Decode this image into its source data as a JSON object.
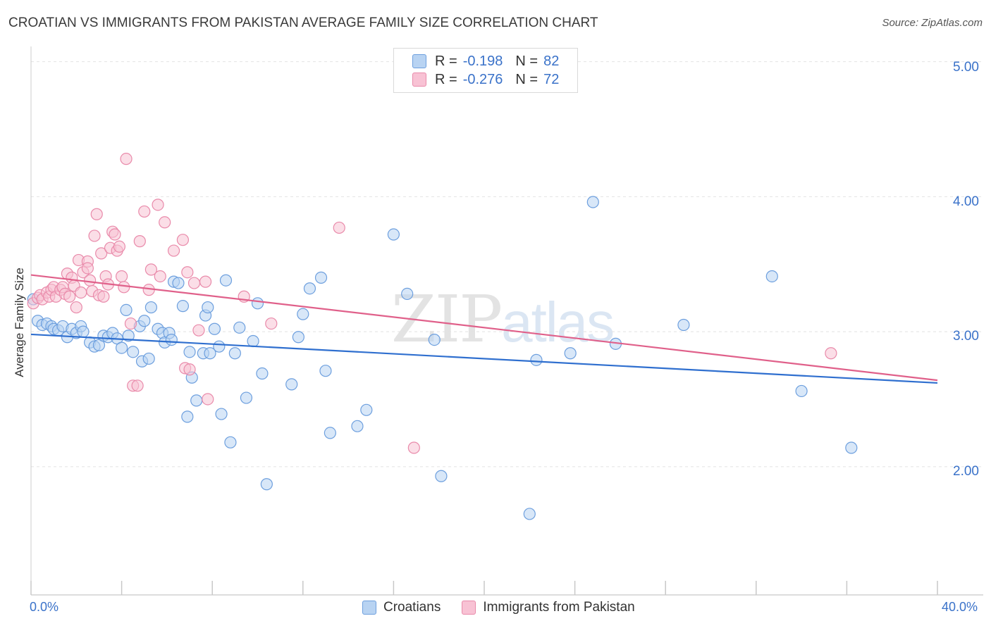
{
  "title": "CROATIAN VS IMMIGRANTS FROM PAKISTAN AVERAGE FAMILY SIZE CORRELATION CHART",
  "source": "Source: ZipAtlas.com",
  "watermark": {
    "bold": "ZIP",
    "thin": "atlas"
  },
  "legend": {
    "rows": [
      {
        "r_label": "R =",
        "r_value": "-0.198",
        "n_label": "N =",
        "n_value": "82",
        "fill": "#b8d3f2",
        "stroke": "#6d9fde"
      },
      {
        "r_label": "R =",
        "r_value": "-0.276",
        "n_label": "N =",
        "n_value": "72",
        "fill": "#f8c2d4",
        "stroke": "#e98aaa"
      }
    ]
  },
  "bottom_legend": [
    {
      "label": "Croatians",
      "fill": "#b8d3f2",
      "stroke": "#6d9fde"
    },
    {
      "label": "Immigrants from Pakistan",
      "fill": "#f8c2d4",
      "stroke": "#e98aaa"
    }
  ],
  "chart_data": {
    "type": "scatter",
    "title": "CROATIAN VS IMMIGRANTS FROM PAKISTAN AVERAGE FAMILY SIZE CORRELATION CHART",
    "xlabel": "",
    "ylabel": "Average Family Size",
    "x_tick_labels": [
      "0.0%",
      "40.0%"
    ],
    "y_tick_labels": [
      "2.00",
      "3.00",
      "4.00",
      "5.00"
    ],
    "xlim": [
      0,
      40
    ],
    "ylim": [
      1.05,
      5.05
    ],
    "grid": true,
    "legend_placement": "top-center",
    "series": [
      {
        "name": "Croatians",
        "color": "#6d9fde",
        "fill": "#b8d3f2",
        "trend": {
          "x0": 0,
          "y0": 2.98,
          "x1": 40,
          "y1": 2.62,
          "color": "#2f6fcf"
        },
        "points": [
          [
            0.1,
            3.24
          ],
          [
            0.3,
            3.08
          ],
          [
            0.5,
            3.05
          ],
          [
            0.7,
            3.06
          ],
          [
            0.9,
            3.04
          ],
          [
            1.0,
            3.02
          ],
          [
            1.2,
            3.01
          ],
          [
            1.4,
            3.04
          ],
          [
            1.6,
            2.96
          ],
          [
            1.8,
            3.02
          ],
          [
            2.0,
            2.99
          ],
          [
            2.2,
            3.04
          ],
          [
            2.3,
            3.0
          ],
          [
            2.6,
            2.92
          ],
          [
            2.8,
            2.89
          ],
          [
            3.0,
            2.9
          ],
          [
            3.2,
            2.97
          ],
          [
            3.4,
            2.96
          ],
          [
            3.6,
            2.99
          ],
          [
            3.8,
            2.95
          ],
          [
            4.0,
            2.88
          ],
          [
            4.2,
            3.16
          ],
          [
            4.3,
            2.97
          ],
          [
            4.5,
            2.85
          ],
          [
            4.8,
            3.04
          ],
          [
            4.9,
            2.78
          ],
          [
            5.0,
            3.08
          ],
          [
            5.2,
            2.8
          ],
          [
            5.3,
            3.18
          ],
          [
            5.6,
            3.02
          ],
          [
            5.8,
            2.99
          ],
          [
            5.9,
            2.92
          ],
          [
            6.1,
            2.99
          ],
          [
            6.2,
            2.94
          ],
          [
            6.3,
            3.37
          ],
          [
            6.5,
            3.36
          ],
          [
            6.7,
            3.19
          ],
          [
            6.9,
            2.37
          ],
          [
            7.0,
            2.85
          ],
          [
            7.1,
            2.66
          ],
          [
            7.3,
            2.49
          ],
          [
            7.6,
            2.84
          ],
          [
            7.7,
            3.12
          ],
          [
            7.8,
            3.18
          ],
          [
            7.9,
            2.84
          ],
          [
            8.1,
            3.02
          ],
          [
            8.3,
            2.89
          ],
          [
            8.4,
            2.39
          ],
          [
            8.6,
            3.38
          ],
          [
            8.8,
            2.18
          ],
          [
            9.0,
            2.84
          ],
          [
            9.2,
            3.03
          ],
          [
            9.5,
            2.51
          ],
          [
            9.8,
            2.93
          ],
          [
            10.0,
            3.21
          ],
          [
            10.2,
            2.69
          ],
          [
            10.4,
            1.87
          ],
          [
            11.5,
            2.61
          ],
          [
            11.8,
            2.96
          ],
          [
            12.0,
            3.13
          ],
          [
            12.3,
            3.32
          ],
          [
            12.8,
            3.4
          ],
          [
            13.0,
            2.71
          ],
          [
            13.2,
            2.25
          ],
          [
            14.4,
            2.3
          ],
          [
            14.8,
            2.42
          ],
          [
            16.0,
            3.72
          ],
          [
            16.6,
            3.28
          ],
          [
            17.8,
            2.94
          ],
          [
            18.1,
            1.93
          ],
          [
            22.0,
            1.65
          ],
          [
            22.3,
            2.79
          ],
          [
            23.8,
            2.84
          ],
          [
            24.8,
            3.96
          ],
          [
            25.8,
            2.91
          ],
          [
            28.8,
            3.05
          ],
          [
            32.7,
            3.41
          ],
          [
            34.0,
            2.56
          ],
          [
            36.2,
            2.14
          ]
        ]
      },
      {
        "name": "Immigrants from Pakistan",
        "color": "#e98aaa",
        "fill": "#f8c2d4",
        "trend": {
          "x0": 0,
          "y0": 3.42,
          "x1": 40,
          "y1": 2.64,
          "color": "#e0608a"
        },
        "points": [
          [
            0.1,
            3.21
          ],
          [
            0.3,
            3.25
          ],
          [
            0.4,
            3.27
          ],
          [
            0.5,
            3.24
          ],
          [
            0.7,
            3.29
          ],
          [
            0.8,
            3.26
          ],
          [
            0.9,
            3.31
          ],
          [
            1.0,
            3.33
          ],
          [
            1.1,
            3.26
          ],
          [
            1.3,
            3.31
          ],
          [
            1.4,
            3.33
          ],
          [
            1.5,
            3.28
          ],
          [
            1.6,
            3.43
          ],
          [
            1.7,
            3.26
          ],
          [
            1.8,
            3.4
          ],
          [
            1.9,
            3.34
          ],
          [
            2.0,
            3.18
          ],
          [
            2.1,
            3.53
          ],
          [
            2.2,
            3.29
          ],
          [
            2.3,
            3.44
          ],
          [
            2.5,
            3.52
          ],
          [
            2.5,
            3.47
          ],
          [
            2.6,
            3.38
          ],
          [
            2.7,
            3.3
          ],
          [
            2.8,
            3.71
          ],
          [
            2.9,
            3.87
          ],
          [
            3.0,
            3.27
          ],
          [
            3.1,
            3.58
          ],
          [
            3.2,
            3.26
          ],
          [
            3.3,
            3.41
          ],
          [
            3.4,
            3.35
          ],
          [
            3.5,
            3.62
          ],
          [
            3.6,
            3.74
          ],
          [
            3.7,
            3.72
          ],
          [
            3.8,
            3.6
          ],
          [
            3.9,
            3.63
          ],
          [
            4.0,
            3.41
          ],
          [
            4.1,
            3.33
          ],
          [
            4.2,
            4.28
          ],
          [
            4.4,
            3.06
          ],
          [
            4.5,
            2.6
          ],
          [
            4.7,
            2.6
          ],
          [
            4.8,
            3.67
          ],
          [
            5.0,
            3.89
          ],
          [
            5.2,
            3.31
          ],
          [
            5.3,
            3.46
          ],
          [
            5.6,
            3.94
          ],
          [
            5.7,
            3.41
          ],
          [
            5.9,
            3.81
          ],
          [
            6.3,
            3.6
          ],
          [
            6.7,
            3.68
          ],
          [
            6.8,
            2.73
          ],
          [
            6.9,
            3.44
          ],
          [
            7.0,
            2.72
          ],
          [
            7.2,
            3.36
          ],
          [
            7.4,
            3.01
          ],
          [
            7.7,
            3.37
          ],
          [
            7.8,
            2.5
          ],
          [
            9.4,
            3.26
          ],
          [
            10.6,
            3.06
          ],
          [
            13.6,
            3.77
          ],
          [
            16.9,
            2.14
          ],
          [
            35.3,
            2.84
          ]
        ]
      }
    ]
  }
}
